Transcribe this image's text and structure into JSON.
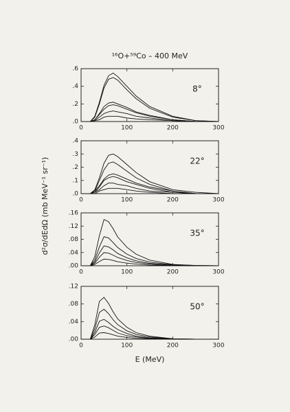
{
  "title": "¹⁶O+⁵⁹Co – 400 MeV",
  "y_label": "d²σ/dEdΩ (mb MeV⁻¹ sr⁻¹)",
  "x_label": "E (MeV)",
  "chart_data": [
    {
      "type": "line",
      "annotation": "8°",
      "x": [
        0,
        20,
        30,
        40,
        50,
        60,
        70,
        80,
        100,
        120,
        150,
        200,
        250,
        300
      ],
      "xlim": [
        0,
        300
      ],
      "xticks": [
        0,
        100,
        200,
        300
      ],
      "ylim": [
        0,
        0.6
      ],
      "yticks": [
        {
          "value": 0,
          "label": ".0"
        },
        {
          "value": 0.2,
          "label": ".2"
        },
        {
          "value": 0.4,
          "label": ".4"
        },
        {
          "value": 0.6,
          "label": ".6"
        }
      ],
      "series": [
        {
          "color": "#111",
          "values": [
            0,
            0,
            0.06,
            0.22,
            0.41,
            0.52,
            0.55,
            0.51,
            0.4,
            0.29,
            0.17,
            0.06,
            0.01,
            0
          ]
        },
        {
          "color": "#111",
          "values": [
            0,
            0,
            0.05,
            0.2,
            0.38,
            0.48,
            0.5,
            0.47,
            0.36,
            0.26,
            0.15,
            0.05,
            0.01,
            0
          ]
        },
        {
          "color": "#111",
          "values": [
            0,
            0,
            0.02,
            0.09,
            0.17,
            0.21,
            0.22,
            0.2,
            0.16,
            0.11,
            0.07,
            0.02,
            0,
            0
          ]
        },
        {
          "color": "#111",
          "values": [
            0,
            0,
            0.02,
            0.08,
            0.14,
            0.18,
            0.19,
            0.18,
            0.14,
            0.1,
            0.06,
            0.02,
            0,
            0
          ]
        },
        {
          "color": "#111",
          "values": [
            0,
            0,
            0.01,
            0.05,
            0.09,
            0.11,
            0.12,
            0.11,
            0.09,
            0.06,
            0.04,
            0.01,
            0,
            0
          ]
        },
        {
          "color": "#111",
          "values": [
            0,
            0,
            0.01,
            0.02,
            0.05,
            0.06,
            0.06,
            0.06,
            0.04,
            0.03,
            0.02,
            0.01,
            0,
            0
          ]
        }
      ]
    },
    {
      "type": "line",
      "annotation": "22°",
      "x": [
        0,
        20,
        30,
        40,
        50,
        60,
        70,
        80,
        100,
        120,
        150,
        200,
        250,
        300
      ],
      "xlim": [
        0,
        300
      ],
      "xticks": [
        0,
        100,
        200,
        300
      ],
      "ylim": [
        0,
        0.4
      ],
      "yticks": [
        {
          "value": 0,
          "label": ".0"
        },
        {
          "value": 0.1,
          "label": ".1"
        },
        {
          "value": 0.2,
          "label": ".2"
        },
        {
          "value": 0.3,
          "label": ".3"
        },
        {
          "value": 0.4,
          "label": ".4"
        }
      ],
      "series": [
        {
          "color": "#111",
          "values": [
            0,
            0,
            0.03,
            0.12,
            0.23,
            0.29,
            0.3,
            0.28,
            0.22,
            0.16,
            0.09,
            0.03,
            0.01,
            0
          ]
        },
        {
          "color": "#111",
          "values": [
            0,
            0,
            0.02,
            0.1,
            0.18,
            0.23,
            0.24,
            0.22,
            0.17,
            0.12,
            0.07,
            0.02,
            0,
            0
          ]
        },
        {
          "color": "#111",
          "values": [
            0,
            0,
            0.02,
            0.06,
            0.11,
            0.14,
            0.15,
            0.14,
            0.11,
            0.08,
            0.05,
            0.02,
            0,
            0
          ]
        },
        {
          "color": "#111",
          "values": [
            0,
            0,
            0.01,
            0.05,
            0.1,
            0.12,
            0.13,
            0.12,
            0.09,
            0.07,
            0.04,
            0.01,
            0,
            0
          ]
        },
        {
          "color": "#111",
          "values": [
            0,
            0,
            0.01,
            0.03,
            0.06,
            0.08,
            0.08,
            0.07,
            0.06,
            0.04,
            0.02,
            0.01,
            0,
            0
          ]
        },
        {
          "color": "#111",
          "values": [
            0,
            0,
            0,
            0.02,
            0.03,
            0.04,
            0.04,
            0.04,
            0.03,
            0.02,
            0.01,
            0,
            0,
            0
          ]
        }
      ]
    },
    {
      "type": "line",
      "annotation": "35°",
      "x": [
        0,
        20,
        30,
        40,
        50,
        60,
        70,
        80,
        100,
        120,
        150,
        200,
        250,
        300
      ],
      "xlim": [
        0,
        300
      ],
      "xticks": [
        0,
        100,
        200,
        300
      ],
      "ylim": [
        0,
        0.16
      ],
      "yticks": [
        {
          "value": 0,
          "label": ".00"
        },
        {
          "value": 0.04,
          "label": ".04"
        },
        {
          "value": 0.08,
          "label": ".08"
        },
        {
          "value": 0.12,
          "label": ".12"
        },
        {
          "value": 0.16,
          "label": ".16"
        }
      ],
      "series": [
        {
          "color": "#111",
          "values": [
            0,
            0,
            0.028,
            0.091,
            0.14,
            0.133,
            0.112,
            0.087,
            0.056,
            0.035,
            0.017,
            0.004,
            0.001,
            0
          ]
        },
        {
          "color": "#111",
          "values": [
            0,
            0,
            0.018,
            0.057,
            0.088,
            0.084,
            0.07,
            0.055,
            0.035,
            0.022,
            0.011,
            0.003,
            0.001,
            0
          ]
        },
        {
          "color": "#111",
          "values": [
            0,
            0,
            0.012,
            0.039,
            0.06,
            0.057,
            0.048,
            0.037,
            0.024,
            0.015,
            0.007,
            0.002,
            0,
            0
          ]
        },
        {
          "color": "#111",
          "values": [
            0,
            0,
            0.008,
            0.026,
            0.04,
            0.038,
            0.032,
            0.025,
            0.016,
            0.01,
            0.005,
            0.001,
            0,
            0
          ]
        },
        {
          "color": "#111",
          "values": [
            0,
            0,
            0.004,
            0.013,
            0.02,
            0.019,
            0.016,
            0.012,
            0.008,
            0.005,
            0.002,
            0.001,
            0,
            0
          ]
        }
      ]
    },
    {
      "type": "line",
      "annotation": "50°",
      "x": [
        0,
        20,
        30,
        40,
        50,
        60,
        70,
        80,
        100,
        120,
        150,
        200,
        250,
        300
      ],
      "xlim": [
        0,
        300
      ],
      "xticks": [
        0,
        100,
        200,
        300
      ],
      "ylim": [
        0,
        0.12
      ],
      "yticks": [
        {
          "value": 0,
          "label": ".00"
        },
        {
          "value": 0.04,
          "label": ".04"
        },
        {
          "value": 0.08,
          "label": ".08"
        },
        {
          "value": 0.12,
          "label": ".12"
        }
      ],
      "series": [
        {
          "color": "#111",
          "values": [
            0,
            0,
            0.033,
            0.086,
            0.095,
            0.081,
            0.062,
            0.046,
            0.027,
            0.015,
            0.007,
            0.001,
            0,
            0
          ]
        },
        {
          "color": "#111",
          "values": [
            0,
            0,
            0.024,
            0.061,
            0.068,
            0.058,
            0.044,
            0.033,
            0.019,
            0.011,
            0.005,
            0.001,
            0,
            0
          ]
        },
        {
          "color": "#111",
          "values": [
            0,
            0,
            0.016,
            0.041,
            0.045,
            0.038,
            0.029,
            0.022,
            0.013,
            0.007,
            0.003,
            0.001,
            0,
            0
          ]
        },
        {
          "color": "#111",
          "values": [
            0,
            0,
            0.011,
            0.027,
            0.03,
            0.026,
            0.02,
            0.014,
            0.008,
            0.005,
            0.002,
            0,
            0,
            0
          ]
        },
        {
          "color": "#111",
          "values": [
            0,
            0,
            0.005,
            0.014,
            0.015,
            0.013,
            0.01,
            0.007,
            0.004,
            0.002,
            0.001,
            0,
            0,
            0
          ]
        }
      ]
    }
  ]
}
